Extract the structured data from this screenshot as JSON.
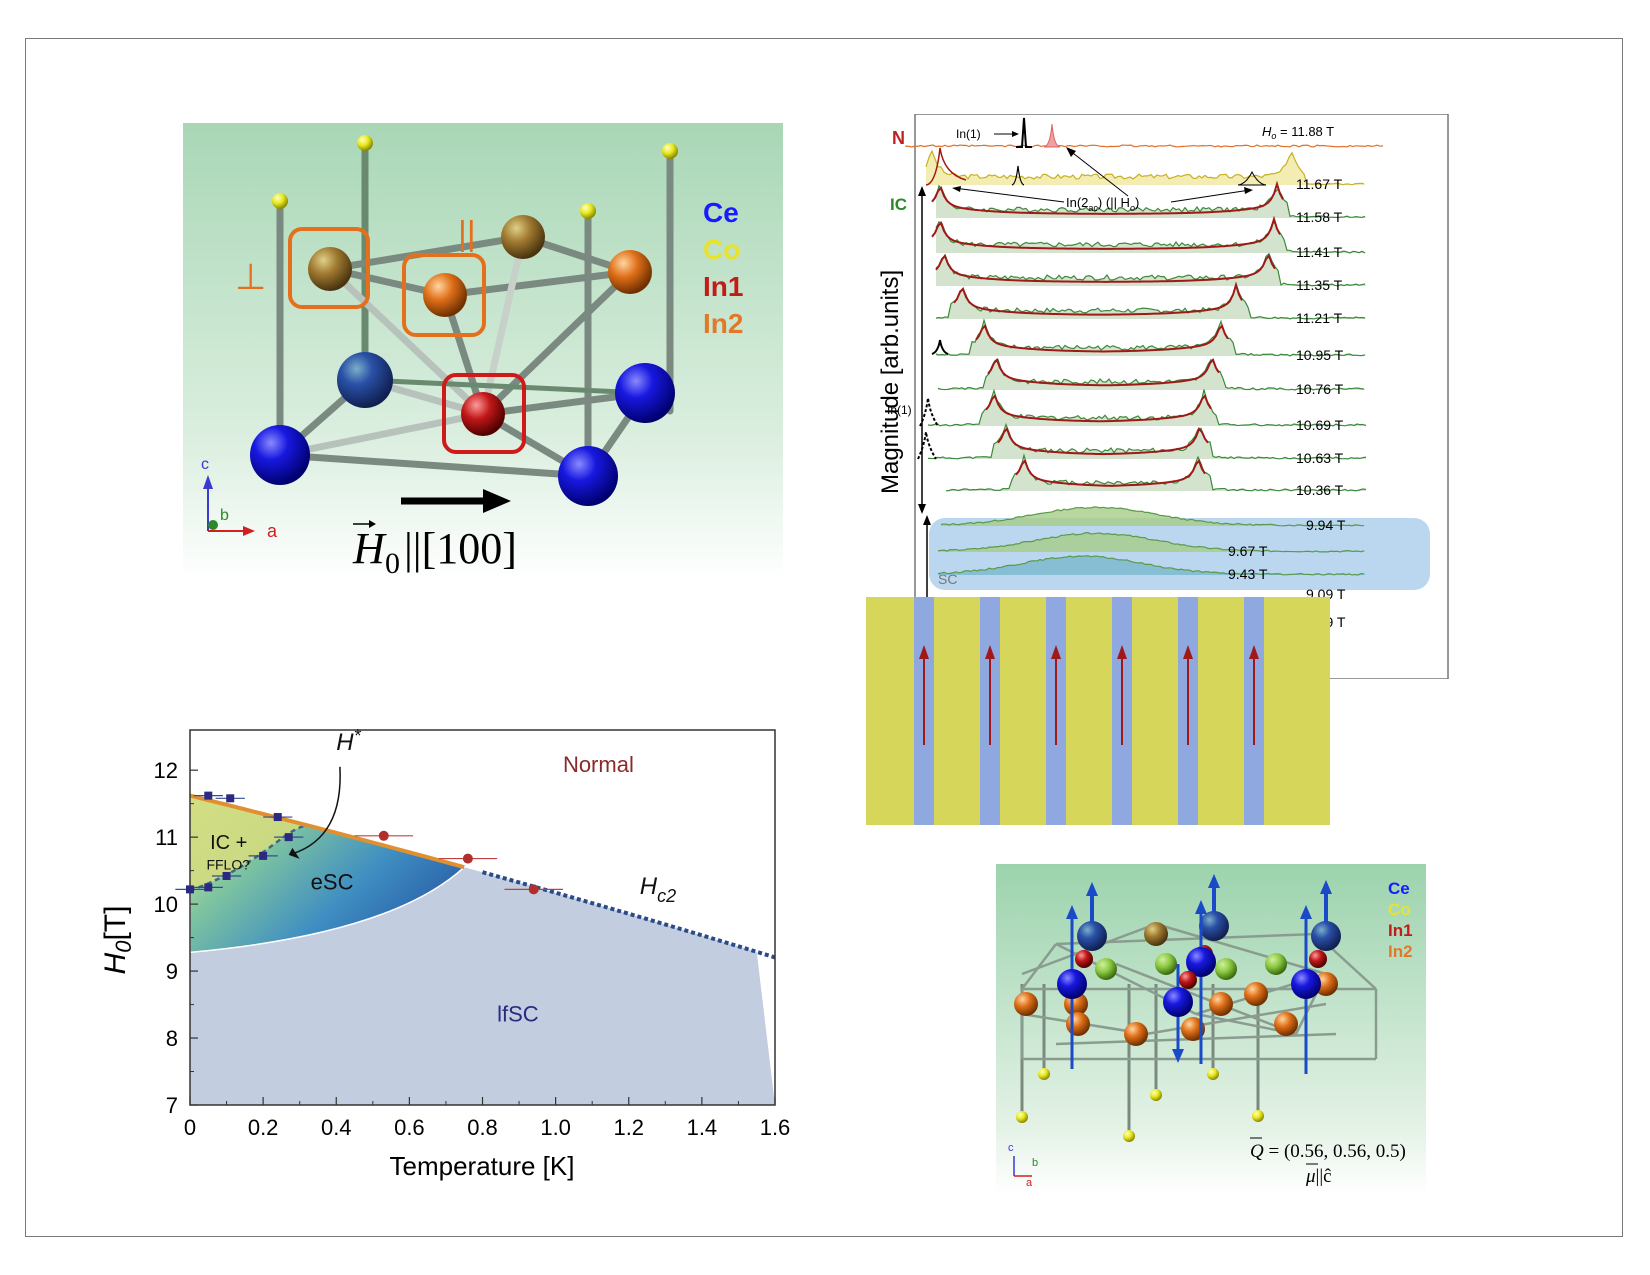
{
  "crystal_panel": {
    "legend": [
      {
        "label": "Ce",
        "color": "#1a1aff"
      },
      {
        "label": "Co",
        "color": "#e8e32a"
      },
      {
        "label": "In1",
        "color": "#c41a1a"
      },
      {
        "label": "In2",
        "color": "#e07a2a"
      }
    ],
    "perp_mark": "⊥",
    "para_mark": "||",
    "axis_c": "c",
    "axis_b": "b",
    "axis_a": "a",
    "field_label": "H",
    "field_sub": "0",
    "field_dir": "||[100]"
  },
  "nmr_panel": {
    "ylabel": "Magnitude [arb.units]",
    "label_N": "N",
    "label_IC": "IC",
    "label_In1_top": "In(1)",
    "label_In1_mid": "In(1)",
    "label_In2": "In(2",
    "label_In2_sub": "ac",
    "label_In2_rest": ") (|| H",
    "label_In2_sub2": "o",
    "label_In2_end": ")",
    "top_field": "H",
    "top_field_sub": "o",
    "top_field_val": " = 11.88 T",
    "fields": [
      "11.67 T",
      "11.58 T",
      "11.41 T",
      "11.35 T",
      "11.21 T",
      "10.95 T",
      "10.76 T",
      "10.69 T",
      "10.63 T",
      "10.36 T",
      "9.94 T",
      "9.67 T",
      "9.43 T",
      "9.09 T",
      "7.99 T"
    ],
    "hidden_label": "SC"
  },
  "stripe_panel": {
    "bg_color": "#d6d65a",
    "stripe_color": "#8fa8e0",
    "arrow_color": "#a01818"
  },
  "chart_data": {
    "type": "scatter",
    "xlabel": "Temperature [K]",
    "ylabel": "H",
    "ylabel_sub": "0",
    "ylabel_unit": "[T]",
    "xlim": [
      0,
      1.6
    ],
    "ylim": [
      7,
      12.6
    ],
    "xticks": [
      "0",
      "0.2",
      "0.4",
      "0.6",
      "0.8",
      "1.0",
      "1.2",
      "1.4",
      "1.6"
    ],
    "yticks": [
      "7",
      "8",
      "9",
      "10",
      "11",
      "12"
    ],
    "regions": {
      "normal": "Normal",
      "esc": "eSC",
      "lfsc": "lfSC",
      "ic": "IC +",
      "fflo": "FFLO?",
      "hstar": "H",
      "hstar_sup": "*",
      "hc2": "H",
      "hc2_sub": "c2"
    },
    "series": [
      {
        "points": [
          [
            0.0,
            10.22
          ],
          [
            0.05,
            10.25
          ],
          [
            0.1,
            10.42
          ],
          [
            0.2,
            10.72
          ],
          [
            0.27,
            11.0
          ],
          [
            0.24,
            11.3
          ],
          [
            0.11,
            11.58
          ],
          [
            0.05,
            11.62
          ]
        ]
      },
      {
        "points": [
          [
            0.53,
            11.02
          ],
          [
            0.76,
            10.68
          ],
          [
            0.94,
            10.22
          ]
        ]
      }
    ]
  },
  "afm_panel": {
    "legend": [
      {
        "label": "Ce",
        "color": "#1a1aff"
      },
      {
        "label": "Co",
        "color": "#e8e32a"
      },
      {
        "label": "In1",
        "color": "#c41a1a"
      },
      {
        "label": "In2",
        "color": "#e07a2a"
      }
    ],
    "axis_c": "c",
    "axis_b": "b",
    "axis_a": "a",
    "q_label": "Q",
    "q_value": " = (0.56, 0.56, 0.5)",
    "mu_label": "μ",
    "mu_value": "||ĉ"
  }
}
